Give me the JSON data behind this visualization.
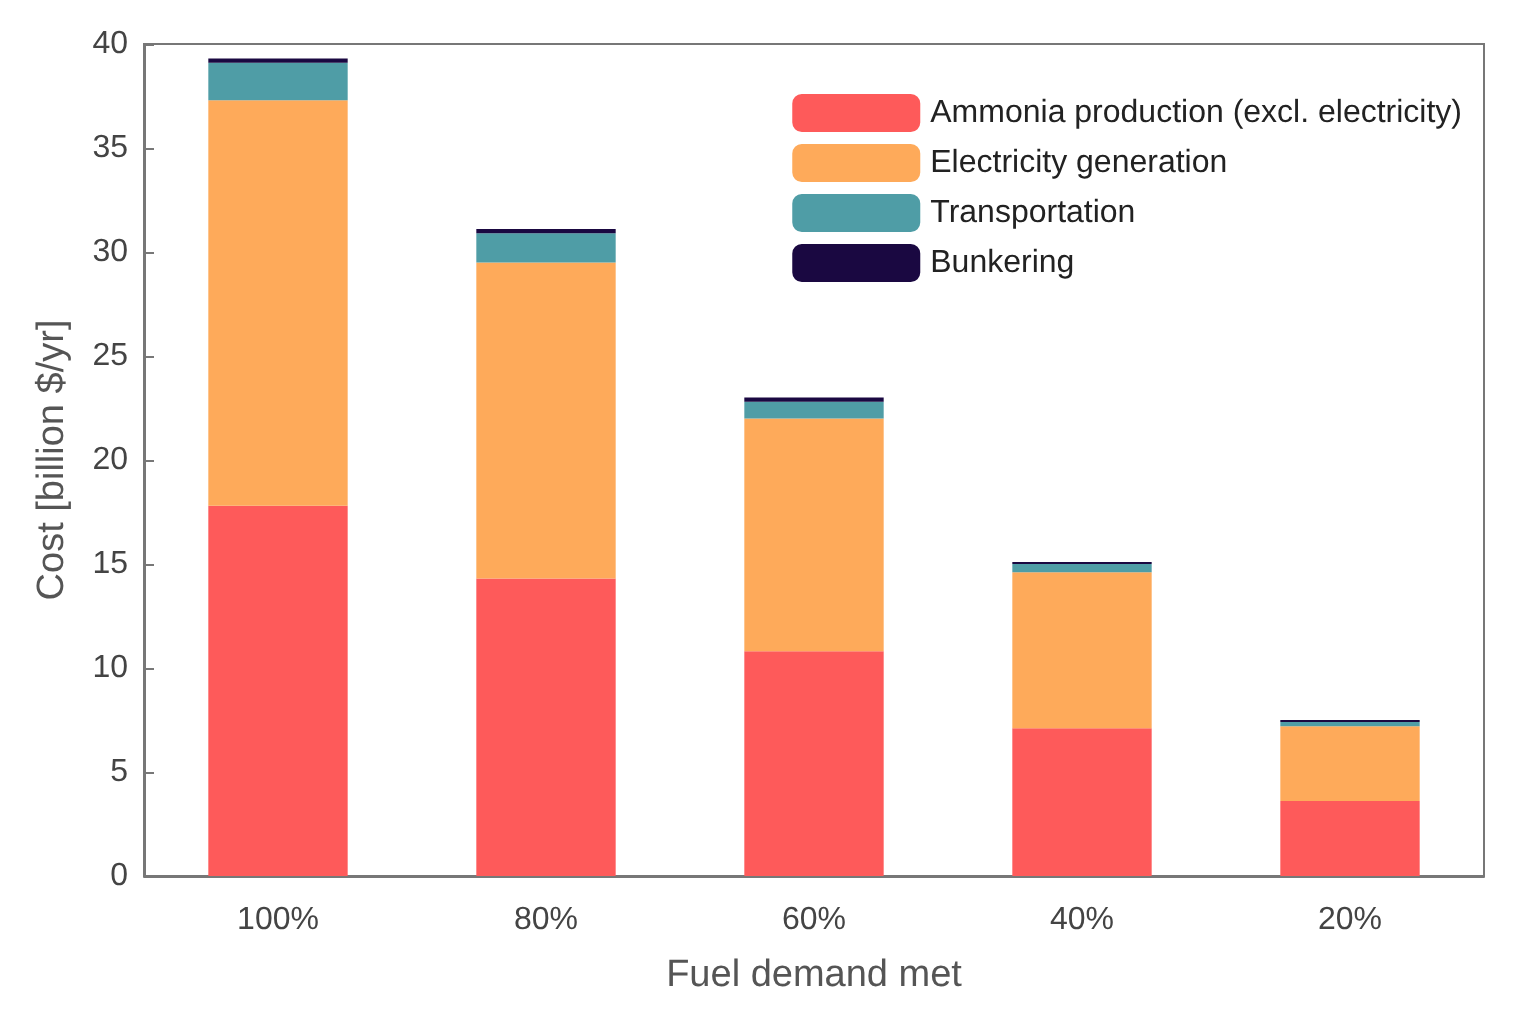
{
  "chart_data": {
    "type": "bar",
    "stacked": true,
    "xlabel": "Fuel demand met",
    "ylabel": "Cost [billion $/yr]",
    "categories": [
      "100%",
      "80%",
      "60%",
      "40%",
      "20%"
    ],
    "series": [
      {
        "name": "Ammonia production (excl. electricity)",
        "color": "#fe5a5a",
        "values": [
          17.8,
          14.3,
          10.8,
          7.1,
          3.6
        ]
      },
      {
        "name": "Electricity generation",
        "color": "#feaa5a",
        "values": [
          19.5,
          15.2,
          11.2,
          7.5,
          3.6
        ]
      },
      {
        "name": "Transportation",
        "color": "#4f9da6",
        "values": [
          1.8,
          1.4,
          0.8,
          0.4,
          0.2
        ]
      },
      {
        "name": "Bunkering",
        "color": "#1a0841",
        "values": [
          0.2,
          0.2,
          0.2,
          0.1,
          0.1
        ]
      }
    ],
    "ylim": [
      0,
      40
    ],
    "yticks": [
      0,
      5,
      10,
      15,
      20,
      25,
      30,
      35,
      40
    ],
    "grid": false,
    "legend": "top right"
  }
}
